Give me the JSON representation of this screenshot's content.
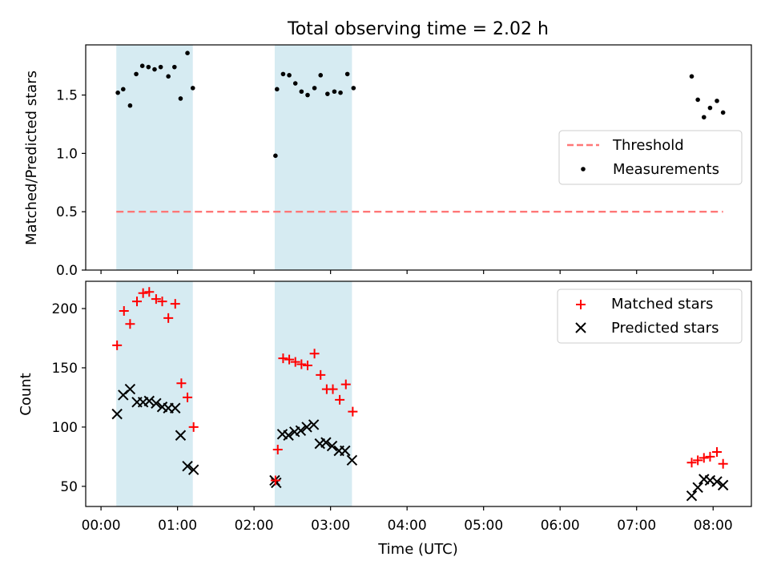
{
  "title": "Total observing time = 2.02 h",
  "chart_data": [
    {
      "type": "scatter",
      "ylabel": "Matched/Predicted stars",
      "xlim": [
        -0.2,
        8.5
      ],
      "ylim": [
        0.0,
        1.93
      ],
      "yticks": [
        0.0,
        0.5,
        1.0,
        1.5
      ],
      "ytick_labels": [
        "0.0",
        "0.5",
        "1.0",
        "1.5"
      ],
      "shaded_intervals": [
        [
          0.2,
          1.2
        ],
        [
          2.27,
          3.28
        ]
      ],
      "threshold": {
        "name": "Threshold",
        "y": 0.5,
        "x_range": [
          0.2,
          8.13
        ],
        "color": "#ff7777"
      },
      "series": [
        {
          "name": "Measurements",
          "color": "#000000",
          "x": [
            0.22,
            0.29,
            0.38,
            0.46,
            0.54,
            0.62,
            0.7,
            0.78,
            0.88,
            0.96,
            1.04,
            1.13,
            1.2,
            2.28,
            2.3,
            2.38,
            2.46,
            2.54,
            2.62,
            2.7,
            2.79,
            2.87,
            2.96,
            3.05,
            3.13,
            3.22,
            3.3,
            7.72,
            7.8,
            7.88,
            7.96,
            8.05,
            8.13
          ],
          "y": [
            1.52,
            1.55,
            1.41,
            1.68,
            1.75,
            1.74,
            1.72,
            1.74,
            1.66,
            1.74,
            1.47,
            1.86,
            1.56,
            0.98,
            1.55,
            1.68,
            1.67,
            1.6,
            1.53,
            1.5,
            1.56,
            1.67,
            1.51,
            1.53,
            1.52,
            1.68,
            1.56,
            1.66,
            1.46,
            1.31,
            1.39,
            1.45,
            1.35
          ]
        }
      ],
      "legend": {
        "position": "right"
      }
    },
    {
      "type": "scatter",
      "xlabel": "Time (UTC)",
      "ylabel": "Count",
      "xlim": [
        -0.2,
        8.5
      ],
      "ylim": [
        33,
        223
      ],
      "yticks": [
        50,
        100,
        150,
        200
      ],
      "ytick_labels": [
        "50",
        "100",
        "150",
        "200"
      ],
      "xticks": [
        0,
        1,
        2,
        3,
        4,
        5,
        6,
        7,
        8
      ],
      "xtick_labels": [
        "00:00",
        "01:00",
        "02:00",
        "03:00",
        "04:00",
        "05:00",
        "06:00",
        "07:00",
        "08:00"
      ],
      "shaded_intervals": [
        [
          0.2,
          1.2
        ],
        [
          2.27,
          3.28
        ]
      ],
      "series": [
        {
          "name": "Matched stars",
          "marker": "+",
          "color": "#ff0000",
          "x": [
            0.21,
            0.3,
            0.38,
            0.47,
            0.55,
            0.63,
            0.72,
            0.8,
            0.88,
            0.97,
            1.05,
            1.13,
            1.21,
            2.28,
            2.31,
            2.38,
            2.46,
            2.54,
            2.62,
            2.7,
            2.79,
            2.87,
            2.95,
            3.03,
            3.12,
            3.2,
            3.29,
            7.72,
            7.8,
            7.88,
            7.96,
            8.05,
            8.13
          ],
          "y": [
            169,
            198,
            187,
            206,
            213,
            214,
            208,
            206,
            192,
            204,
            137,
            125,
            100,
            55,
            81,
            158,
            157,
            155,
            153,
            152,
            162,
            144,
            132,
            132,
            123,
            136,
            113,
            70,
            72,
            74,
            75,
            79,
            69
          ]
        },
        {
          "name": "Predicted stars",
          "marker": "x",
          "color": "#000000",
          "x": [
            0.21,
            0.29,
            0.38,
            0.47,
            0.55,
            0.63,
            0.72,
            0.8,
            0.88,
            0.97,
            1.04,
            1.13,
            1.21,
            2.27,
            2.29,
            2.37,
            2.45,
            2.53,
            2.61,
            2.69,
            2.78,
            2.86,
            2.94,
            3.02,
            3.11,
            3.19,
            3.28,
            7.72,
            7.8,
            7.88,
            7.96,
            8.05,
            8.13
          ],
          "y": [
            111,
            127,
            132,
            121,
            121,
            122,
            120,
            117,
            116,
            116,
            93,
            67,
            64,
            55,
            53,
            94,
            93,
            96,
            97,
            100,
            102,
            86,
            87,
            84,
            80,
            80,
            72,
            42,
            49,
            56,
            55,
            54,
            51
          ]
        }
      ],
      "legend": {
        "position": "top-right"
      }
    }
  ]
}
